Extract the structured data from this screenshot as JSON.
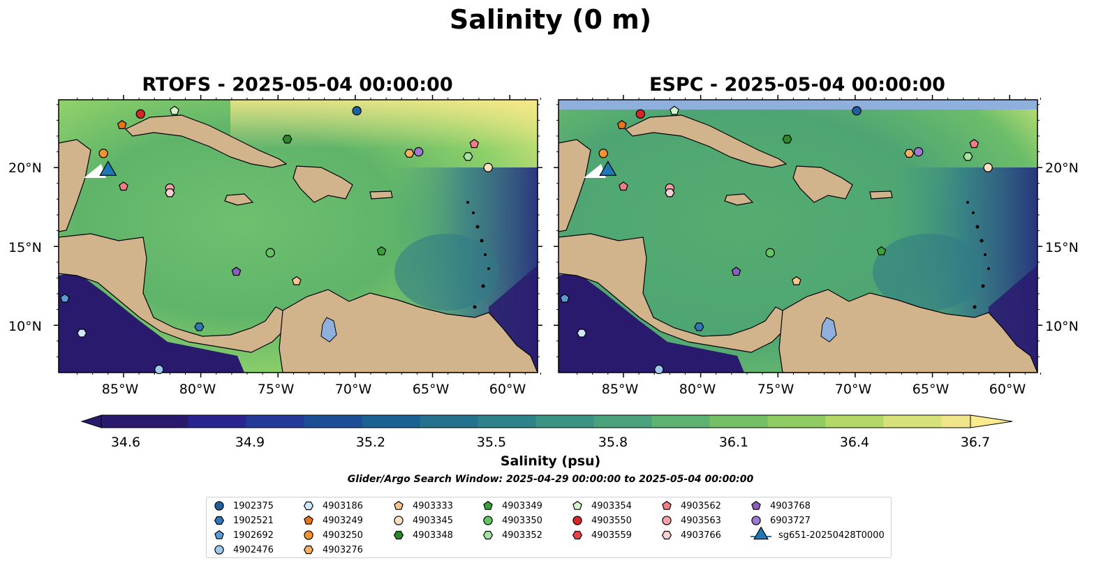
{
  "suptitle": "Salinity (0 m)",
  "panels": [
    {
      "title": "RTOFS - 2025-05-04 00:00:00"
    },
    {
      "title": "ESPC - 2025-05-04 00:00:00"
    }
  ],
  "map": {
    "lon_ticks": [
      "85°W",
      "80°W",
      "75°W",
      "70°W",
      "65°W",
      "60°W"
    ],
    "lat_ticks": [
      "20°N",
      "15°N",
      "10°N"
    ],
    "colors": {
      "land": "#d2b48c",
      "low": "#2a1a6e",
      "high": "#fde98d",
      "lake": "#8fb0dd",
      "river": "#a9bcd6"
    }
  },
  "colorbar": {
    "ticks": [
      "34.6",
      "34.9",
      "35.2",
      "35.5",
      "35.8",
      "36.1",
      "36.4",
      "36.7"
    ],
    "label": "Salinity (psu)",
    "colormap": "haline"
  },
  "search_window": "Glider/Argo Search Window: 2025-04-29 00:00:00 to 2025-05-04 00:00:00",
  "legend": [
    {
      "label": "1902375",
      "marker": "circle",
      "color": "#1f5fa0"
    },
    {
      "label": "1902521",
      "marker": "hexagon",
      "color": "#2f77b8"
    },
    {
      "label": "1902692",
      "marker": "pentagon",
      "color": "#5b9bd5"
    },
    {
      "label": "4902476",
      "marker": "circle",
      "color": "#9ec9ec"
    },
    {
      "label": "4903186",
      "marker": "hexagon",
      "color": "#cfe8fb"
    },
    {
      "label": "4903249",
      "marker": "pentagon",
      "color": "#e8741a"
    },
    {
      "label": "4903250",
      "marker": "circle",
      "color": "#f5932e"
    },
    {
      "label": "4903276",
      "marker": "hexagon",
      "color": "#f7b05e"
    },
    {
      "label": "4903333",
      "marker": "pentagon",
      "color": "#f8c58e"
    },
    {
      "label": "4903345",
      "marker": "circle",
      "color": "#fde0c0"
    },
    {
      "label": "4903348",
      "marker": "hexagon",
      "color": "#2a8a2a"
    },
    {
      "label": "4903349",
      "marker": "pentagon",
      "color": "#3aa13a"
    },
    {
      "label": "4903350",
      "marker": "circle",
      "color": "#66c266"
    },
    {
      "label": "4903352",
      "marker": "hexagon",
      "color": "#a6e3a0"
    },
    {
      "label": "4903354",
      "marker": "pentagon",
      "color": "#d4f5cc"
    },
    {
      "label": "4903550",
      "marker": "circle",
      "color": "#d62728"
    },
    {
      "label": "4903559",
      "marker": "hexagon",
      "color": "#e8434a"
    },
    {
      "label": "4903562",
      "marker": "pentagon",
      "color": "#f07c86"
    },
    {
      "label": "4903563",
      "marker": "circle",
      "color": "#f5a3a8"
    },
    {
      "label": "4903766",
      "marker": "hexagon",
      "color": "#fbd2d4"
    },
    {
      "label": "4903768",
      "marker": "pentagon",
      "color": "#8a5fbf"
    },
    {
      "label": "6903727",
      "marker": "circle",
      "color": "#a07ad0"
    },
    {
      "label": "sg651-20250428T0000",
      "marker": "triangle",
      "color": "#1f77b4"
    }
  ],
  "floats": [
    {
      "id": "1902375",
      "lon": -69.9,
      "lat": 23.6
    },
    {
      "id": "1902521",
      "lon": -80.1,
      "lat": 9.9
    },
    {
      "id": "1902692",
      "lon": -88.8,
      "lat": 11.7
    },
    {
      "id": "4902476",
      "lon": -82.7,
      "lat": 7.2
    },
    {
      "id": "4903186",
      "lon": -87.7,
      "lat": 9.5
    },
    {
      "id": "4903249",
      "lon": -85.1,
      "lat": 22.7
    },
    {
      "id": "4903250",
      "lon": -86.3,
      "lat": 20.9
    },
    {
      "id": "4903276",
      "lon": -66.5,
      "lat": 20.9
    },
    {
      "id": "4903333",
      "lon": -73.8,
      "lat": 12.8
    },
    {
      "id": "4903345",
      "lon": -61.4,
      "lat": 20.0
    },
    {
      "id": "4903348",
      "lon": -74.4,
      "lat": 21.8
    },
    {
      "id": "4903349",
      "lon": -68.3,
      "lat": 14.7
    },
    {
      "id": "4903350",
      "lon": -75.5,
      "lat": 14.6
    },
    {
      "id": "4903352",
      "lon": -62.7,
      "lat": 20.7
    },
    {
      "id": "4903354",
      "lon": -81.7,
      "lat": 23.6
    },
    {
      "id": "4903550",
      "lon": -83.9,
      "lat": 23.4
    },
    {
      "id": "4903559",
      "lon": -82.0,
      "lat": 18.4
    },
    {
      "id": "4903562",
      "lon": -85.0,
      "lat": 18.8
    },
    {
      "id": "4903563",
      "lon": -82.0,
      "lat": 18.7
    },
    {
      "id": "4903766",
      "lon": -82.0,
      "lat": 18.4
    },
    {
      "id": "4903768",
      "lon": -77.7,
      "lat": 13.4
    },
    {
      "id": "6903727",
      "lon": -65.9,
      "lat": 21.0
    },
    {
      "id": "4903562b",
      "lon": -62.3,
      "lat": 21.5
    }
  ],
  "glider": {
    "id": "sg651-20250428T0000",
    "lon": -86.0,
    "lat": 19.8
  }
}
